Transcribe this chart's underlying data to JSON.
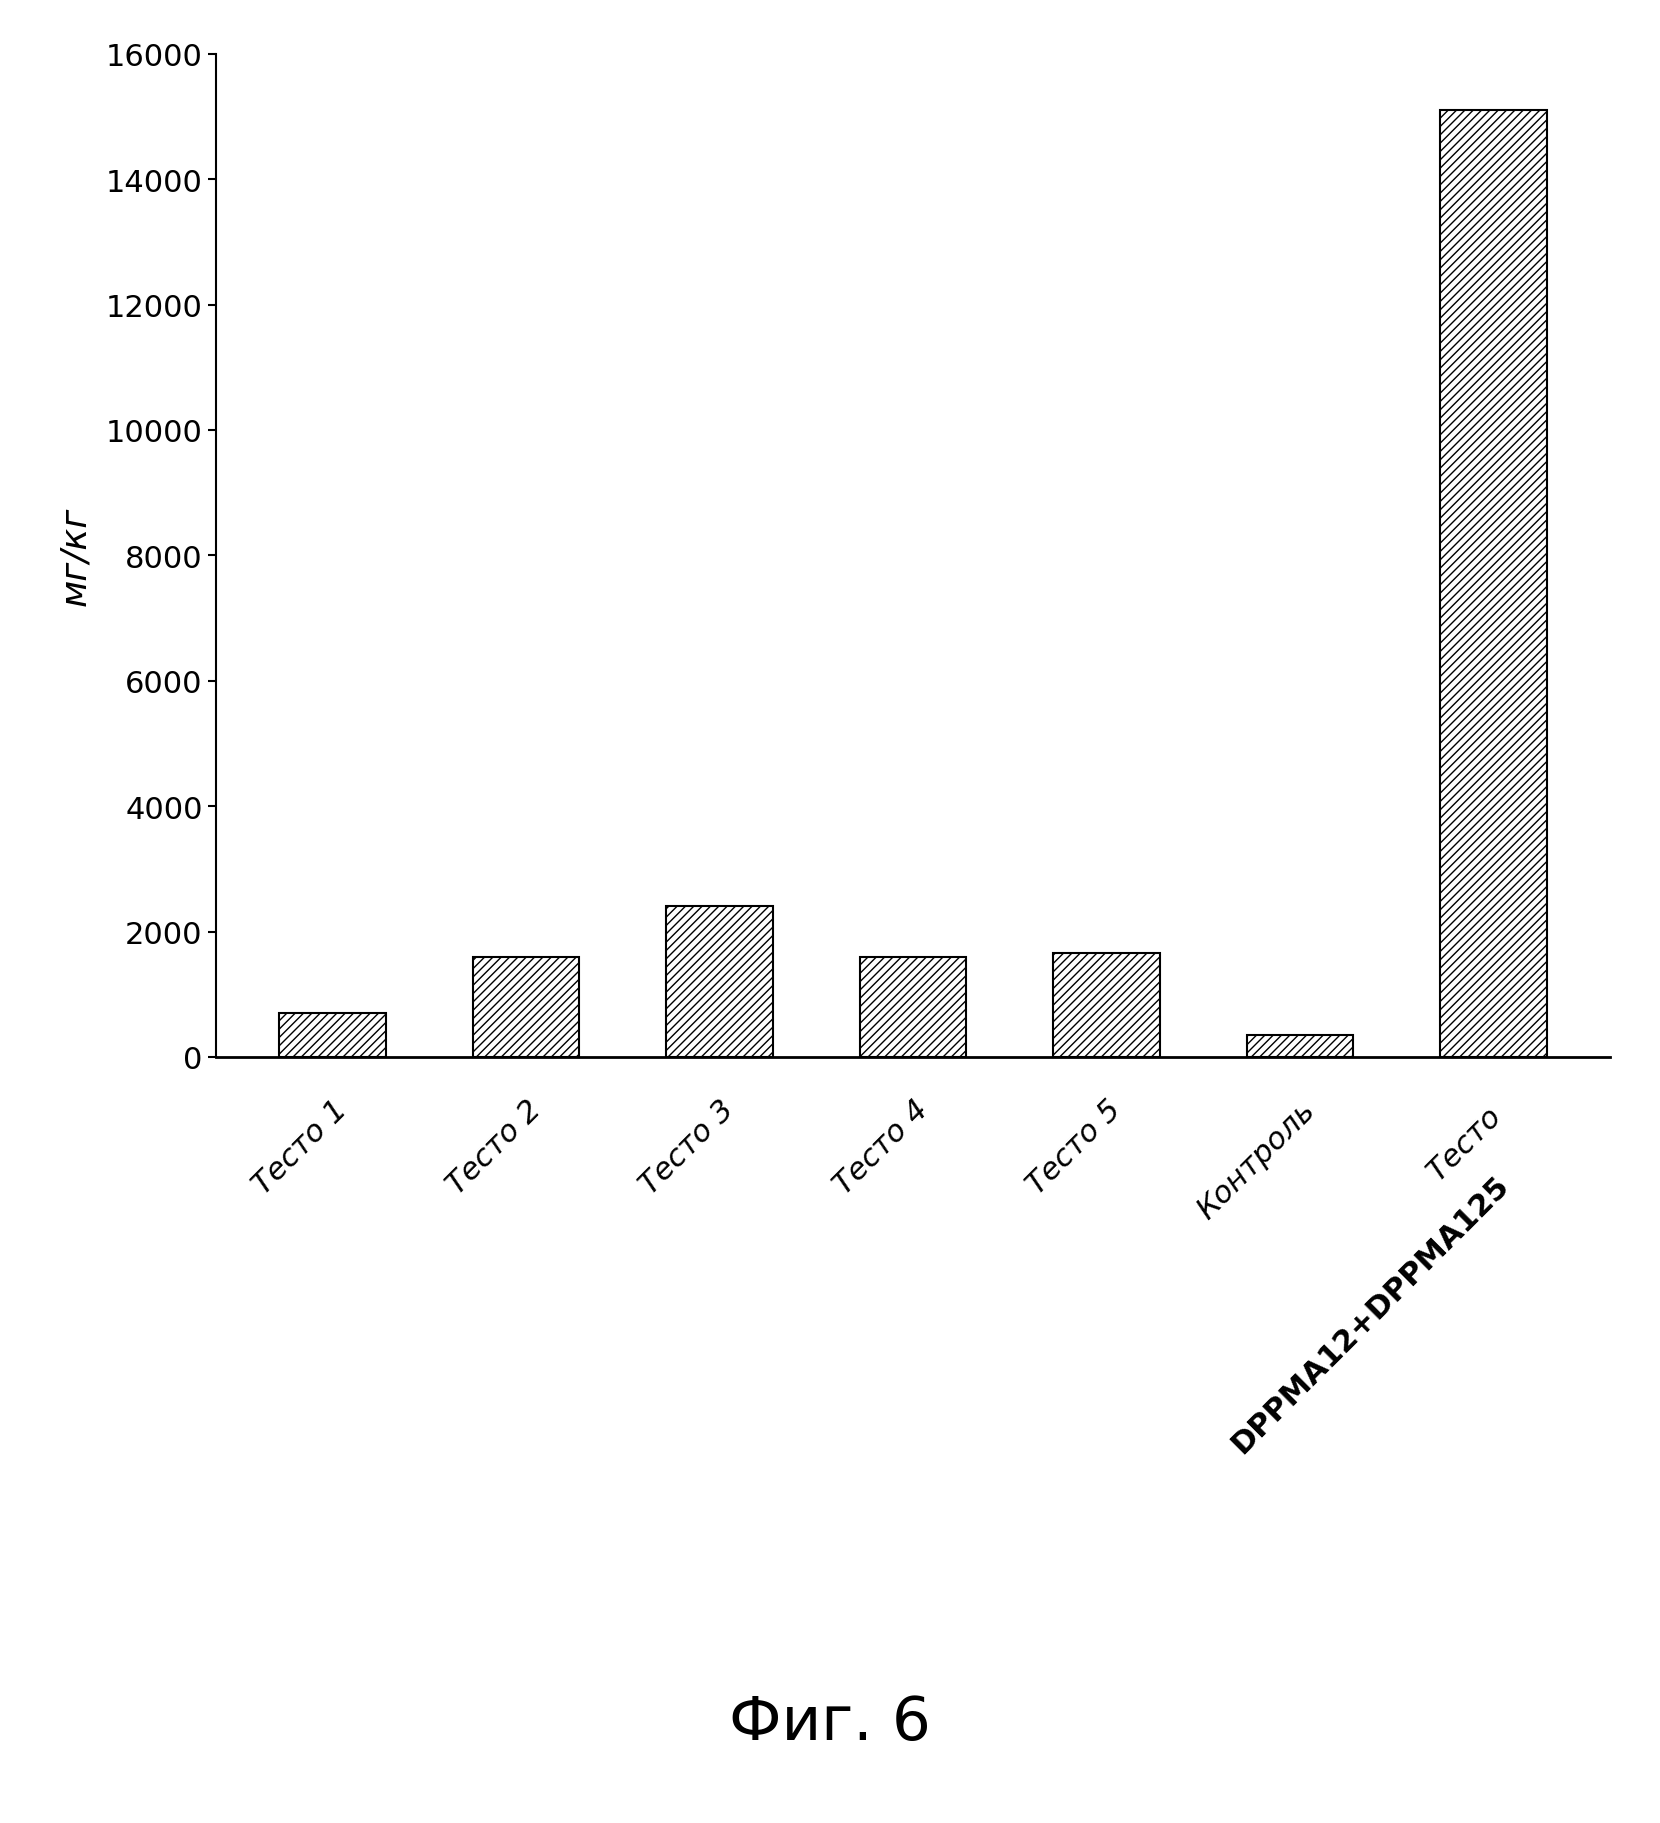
{
  "categories": [
    "Тесто 1",
    "Тесто 2",
    "Тесто 3",
    "Тесто 4",
    "Тесто 5",
    "Контроль",
    "Тесто\nDPPMA12+DPPMA125"
  ],
  "values": [
    700,
    1600,
    2400,
    1600,
    1650,
    350,
    15100
  ],
  "ylabel": "мг/кг",
  "ylim": [
    0,
    16000
  ],
  "yticks": [
    0,
    2000,
    4000,
    6000,
    8000,
    10000,
    12000,
    14000,
    16000
  ],
  "bar_color": "#ffffff",
  "bar_edgecolor": "#000000",
  "hatch": "////",
  "figure_title": "Фиг. 6",
  "background_color": "#ffffff",
  "label_parts": [
    [
      "Тесто 1",
      false
    ],
    [
      "Тесто 2",
      false
    ],
    [
      "Тесто 3",
      false
    ],
    [
      "Тесто 4",
      false
    ],
    [
      "Тесто 5",
      false
    ],
    [
      "Контроль",
      false
    ],
    [
      "Тесто DPPMA12+DPPMA125",
      true
    ]
  ]
}
